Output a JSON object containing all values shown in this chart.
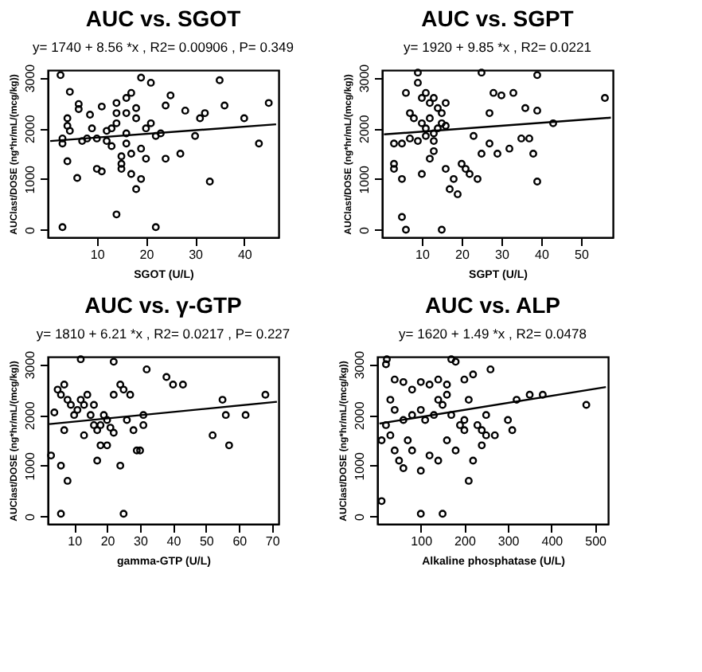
{
  "chart_data": [
    {
      "type": "scatter",
      "title": "AUC vs. SGOT",
      "annotations": [
        "y= 1740 + 8.56 *x , R2= 0.00906 , P= 0.349"
      ],
      "xlabel": "SGOT (U/L)",
      "ylabel": "AUClast/DOSE (ng*hr/mL/(mcg/kg))",
      "xlim": [
        0,
        47
      ],
      "ylim": [
        -150,
        3150
      ],
      "xticks": [
        10,
        20,
        30,
        40
      ],
      "yticks": [
        {
          "value": 0,
          "label": "0"
        },
        {
          "value": 1000,
          "label": "1000"
        },
        {
          "value": 2000,
          "label": "2000"
        },
        {
          "value": 3000,
          "label": "3000"
        }
      ],
      "grid": false,
      "series": [
        {
          "marker": "circle",
          "color": "#000000",
          "x": [
            2.6,
            4.5,
            6.3,
            6.3,
            8.6,
            11,
            4,
            4,
            4.5,
            3,
            3,
            4,
            6,
            7,
            8,
            9,
            10,
            10,
            11,
            12,
            12,
            13,
            13,
            14,
            14,
            14,
            15,
            15,
            15,
            16,
            16,
            16,
            16,
            17,
            17,
            17,
            18,
            18,
            18,
            19,
            19,
            19,
            20,
            20,
            21,
            21,
            22,
            22,
            23,
            24,
            24,
            25,
            27,
            28,
            30,
            31,
            32,
            33,
            35,
            36,
            40,
            43,
            45,
            14,
            3
          ],
          "values": [
            3050,
            2720,
            2480,
            2380,
            2270,
            2430,
            2200,
            2050,
            1950,
            1800,
            1700,
            1350,
            1020,
            1750,
            1800,
            2000,
            1800,
            1200,
            1150,
            1950,
            1750,
            2000,
            1650,
            2500,
            2300,
            2100,
            1450,
            1300,
            1200,
            2600,
            2300,
            1900,
            1700,
            2700,
            1100,
            1500,
            2400,
            2200,
            800,
            3000,
            1600,
            1000,
            2000,
            1400,
            2900,
            2100,
            1850,
            50,
            1900,
            2450,
            1400,
            2650,
            1500,
            2350,
            1850,
            2200,
            2300,
            950,
            2950,
            2450,
            2200,
            1700,
            2500,
            300,
            50
          ]
        },
        {
          "type": "line",
          "marker": "none",
          "color": "#000000",
          "x": [
            0.5,
            46.5
          ],
          "values": [
            1750,
            2080
          ]
        }
      ]
    },
    {
      "type": "scatter",
      "title": "AUC vs. SGPT",
      "annotations": [
        "y= 1920 + 9.85 *x , R2= 0.0221"
      ],
      "xlabel": "SGPT (U/L)",
      "ylabel": "AUClast/DOSE (ng*hr/mL/(mcg/kg))",
      "xlim": [
        0,
        58
      ],
      "ylim": [
        -150,
        3150
      ],
      "xticks": [
        10,
        20,
        30,
        40,
        50
      ],
      "yticks": [
        0,
        1000,
        2000,
        3000
      ],
      "grid": false,
      "series": [
        {
          "marker": "circle",
          "color": "#000000",
          "x": [
            6,
            9,
            9,
            10,
            11,
            12,
            13,
            14,
            15,
            16,
            7,
            8,
            10,
            11,
            12,
            13,
            14,
            15,
            16,
            5,
            7,
            9,
            11,
            13,
            3,
            3,
            3,
            5,
            10,
            12,
            13,
            16,
            17,
            18,
            19,
            20,
            21,
            22,
            23,
            24,
            25,
            25,
            27,
            27,
            28,
            29,
            30,
            32,
            33,
            35,
            36,
            37,
            38,
            39,
            39,
            39,
            43,
            56,
            5,
            6,
            15
          ],
          "values": [
            2700,
            3100,
            2900,
            2600,
            2700,
            2500,
            2600,
            2400,
            2300,
            2500,
            2300,
            2200,
            2100,
            2000,
            2200,
            1900,
            2000,
            2100,
            2050,
            1700,
            1800,
            1750,
            1850,
            1750,
            1700,
            1300,
            1200,
            1000,
            1100,
            1400,
            1550,
            1200,
            800,
            1000,
            700,
            1300,
            1200,
            1100,
            1850,
            1000,
            1500,
            3100,
            2300,
            1700,
            2700,
            1500,
            2650,
            1600,
            2700,
            1800,
            2400,
            1800,
            1500,
            3050,
            2350,
            950,
            2100,
            2600,
            250,
            0,
            0
          ]
        },
        {
          "type": "line",
          "marker": "none",
          "color": "#000000",
          "x": [
            0.5,
            57.5
          ],
          "values": [
            1880,
            2210
          ]
        }
      ]
    },
    {
      "type": "scatter",
      "title": "AUC vs. γ-GTP",
      "annotations": [
        "y= 1810 + 6.21 *x , R2= 0.0217 , P= 0.227"
      ],
      "xlabel": "gamma-GTP (U/L)",
      "ylabel": "AUClast/DOSE (ng*hr/mL/(mcg/kg))",
      "xlim": [
        2,
        72
      ],
      "ylim": [
        -150,
        3150
      ],
      "xticks": [
        10,
        20,
        30,
        40,
        50,
        60,
        70
      ],
      "yticks": [
        0,
        1000,
        2000,
        3000
      ],
      "grid": false,
      "series": [
        {
          "marker": "circle",
          "color": "#000000",
          "x": [
            12,
            22,
            5,
            6,
            7,
            8,
            9,
            10,
            11,
            12,
            13,
            14,
            15,
            16,
            16,
            17,
            18,
            19,
            20,
            20,
            21,
            22,
            22,
            24,
            24,
            25,
            26,
            27,
            28,
            29,
            30,
            31,
            31,
            32,
            38,
            40,
            43,
            52,
            55,
            56,
            57,
            62,
            68,
            3,
            6,
            7,
            8,
            13,
            17,
            18,
            6,
            25,
            4
          ],
          "values": [
            3100,
            3050,
            2500,
            2400,
            2600,
            2300,
            2200,
            2000,
            2100,
            2300,
            2200,
            2400,
            2000,
            1800,
            2200,
            1700,
            1800,
            2000,
            1900,
            1400,
            1750,
            2400,
            1650,
            2600,
            1000,
            2500,
            1900,
            2400,
            1700,
            1300,
            1300,
            1800,
            2000,
            2900,
            2750,
            2600,
            2600,
            1600,
            2300,
            2000,
            1400,
            2000,
            2400,
            1200,
            1000,
            1700,
            700,
            1600,
            1100,
            1400,
            50,
            50,
            2050
          ]
        },
        {
          "type": "line",
          "marker": "none",
          "color": "#000000",
          "x": [
            2.5,
            71.5
          ],
          "values": [
            1820,
            2260
          ]
        }
      ]
    },
    {
      "type": "scatter",
      "title": "AUC vs. ALP",
      "annotations": [
        "y= 1620 + 1.49 *x , R2= 0.0478"
      ],
      "xlabel": "Alkaline phosphatase (U/L)",
      "ylabel": "AUClast/DOSE (ng*hr/mL/(mcg/kg))",
      "xlim": [
        0,
        530
      ],
      "ylim": [
        -150,
        3150
      ],
      "xticks": [
        100,
        200,
        300,
        400,
        500
      ],
      "yticks": [
        0,
        1000,
        2000,
        3000
      ],
      "grid": false,
      "series": [
        {
          "marker": "circle",
          "color": "#000000",
          "x": [
            20,
            22,
            40,
            60,
            80,
            100,
            120,
            140,
            160,
            170,
            180,
            200,
            220,
            260,
            30,
            40,
            60,
            80,
            100,
            110,
            130,
            140,
            150,
            160,
            170,
            190,
            200,
            210,
            230,
            240,
            250,
            270,
            300,
            310,
            320,
            350,
            380,
            480,
            10,
            20,
            30,
            40,
            50,
            60,
            70,
            80,
            100,
            120,
            140,
            160,
            180,
            200,
            210,
            220,
            240,
            250,
            10,
            100,
            150
          ],
          "values": [
            3000,
            3100,
            2700,
            2650,
            2500,
            2650,
            2600,
            2700,
            2600,
            3100,
            3050,
            2700,
            2800,
            2900,
            2300,
            2100,
            1900,
            2000,
            2100,
            1900,
            2000,
            2300,
            2200,
            2400,
            2000,
            1800,
            1900,
            2300,
            1800,
            1700,
            2000,
            1600,
            1900,
            1700,
            2300,
            2400,
            2400,
            2200,
            1500,
            1800,
            1600,
            1300,
            1100,
            950,
            1500,
            1300,
            900,
            1200,
            1100,
            1500,
            1300,
            1700,
            700,
            1100,
            1400,
            1600,
            300,
            50,
            50
          ]
        },
        {
          "type": "line",
          "marker": "none",
          "color": "#000000",
          "x": [
            5,
            525
          ],
          "values": [
            1830,
            2550
          ]
        }
      ]
    }
  ]
}
